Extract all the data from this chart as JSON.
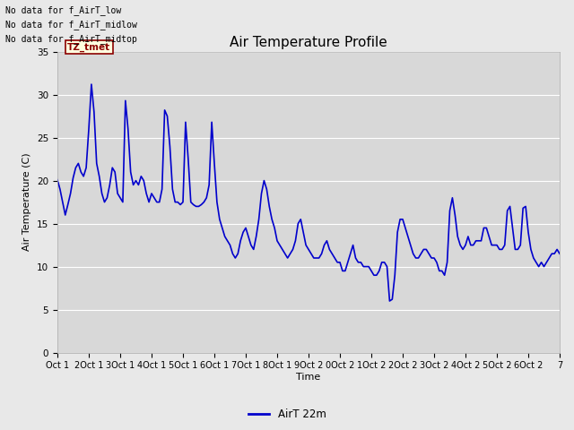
{
  "title": "Air Temperature Profile",
  "xlabel": "Time",
  "ylabel": "Air Temperature (C)",
  "ylim": [
    0,
    35
  ],
  "yticks": [
    0,
    5,
    10,
    15,
    20,
    25,
    30,
    35
  ],
  "line_color": "#0000CC",
  "line_width": 1.2,
  "fig_bg_color": "#E8E8E8",
  "plot_bg_color": "#D8D8D8",
  "annotations": [
    "No data for f_AirT_low",
    "No data for f_AirT_midlow",
    "No data for f_AirT_midtop"
  ],
  "legend_label": "AirT 22m",
  "tz_label": "TZ_tmet",
  "x_tick_labels": [
    "Oct 1",
    "2Oct 1",
    "3Oct 1",
    "4Oct 1",
    "5Oct 1",
    "6Oct 1",
    "7Oct 1",
    "8Oct 1",
    "9Oct 2",
    "0Oct 2",
    "1Oct 2",
    "2Oct 2",
    "3Oct 2",
    "4Oct 2",
    "5Oct 2",
    "6Oct 2",
    "7"
  ],
  "time_data": [
    0.0,
    0.083,
    0.167,
    0.25,
    0.333,
    0.417,
    0.5,
    0.583,
    0.667,
    0.75,
    0.833,
    0.917,
    1.0,
    1.083,
    1.167,
    1.25,
    1.333,
    1.417,
    1.5,
    1.583,
    1.667,
    1.75,
    1.833,
    1.917,
    2.0,
    2.083,
    2.167,
    2.25,
    2.333,
    2.417,
    2.5,
    2.583,
    2.667,
    2.75,
    2.833,
    2.917,
    3.0,
    3.083,
    3.167,
    3.25,
    3.333,
    3.417,
    3.5,
    3.583,
    3.667,
    3.75,
    3.833,
    3.917,
    4.0,
    4.083,
    4.167,
    4.25,
    4.333,
    4.417,
    4.5,
    4.583,
    4.667,
    4.75,
    4.833,
    4.917,
    5.0,
    5.083,
    5.167,
    5.25,
    5.333,
    5.417,
    5.5,
    5.583,
    5.667,
    5.75,
    5.833,
    5.917,
    6.0,
    6.083,
    6.167,
    6.25,
    6.333,
    6.417,
    6.5,
    6.583,
    6.667,
    6.75,
    6.833,
    6.917,
    7.0,
    7.083,
    7.167,
    7.25,
    7.333,
    7.417,
    7.5,
    7.583,
    7.667,
    7.75,
    7.833,
    7.917,
    8.0,
    8.083,
    8.167,
    8.25,
    8.333,
    8.417,
    8.5,
    8.583,
    8.667,
    8.75,
    8.833,
    8.917,
    9.0,
    9.083,
    9.167,
    9.25,
    9.333,
    9.417,
    9.5,
    9.583,
    9.667,
    9.75,
    9.833,
    9.917,
    10.0,
    10.083,
    10.167,
    10.25,
    10.333,
    10.417,
    10.5,
    10.583,
    10.667,
    10.75,
    10.833,
    10.917,
    11.0,
    11.083,
    11.167,
    11.25,
    11.333,
    11.417,
    11.5,
    11.583,
    11.667,
    11.75,
    11.833,
    11.917,
    12.0,
    12.083,
    12.167,
    12.25,
    12.333,
    12.417,
    12.5,
    12.583,
    12.667,
    12.75,
    12.833,
    12.917,
    13.0,
    13.083,
    13.167,
    13.25,
    13.333,
    13.417,
    13.5,
    13.583,
    13.667,
    13.75,
    13.833,
    13.917,
    14.0,
    14.083,
    14.167,
    14.25,
    14.333,
    14.417,
    14.5,
    14.583,
    14.667,
    14.75,
    14.833,
    14.917,
    15.0,
    15.083,
    15.167,
    15.25,
    15.333,
    15.417,
    15.5,
    15.583,
    15.667,
    15.75,
    15.833,
    15.917,
    16.0
  ],
  "temp_data": [
    20.1,
    19.0,
    17.5,
    16.0,
    17.2,
    18.5,
    20.3,
    21.5,
    22.0,
    21.0,
    20.5,
    21.5,
    26.0,
    31.2,
    28.0,
    22.0,
    20.5,
    18.5,
    17.5,
    18.0,
    19.5,
    21.5,
    21.0,
    18.5,
    18.0,
    17.5,
    29.3,
    26.0,
    21.0,
    19.5,
    20.0,
    19.5,
    20.5,
    20.0,
    18.5,
    17.5,
    18.5,
    18.0,
    17.5,
    17.5,
    19.0,
    28.2,
    27.5,
    24.0,
    19.0,
    17.5,
    17.5,
    17.2,
    17.5,
    26.8,
    22.5,
    17.5,
    17.2,
    17.0,
    17.0,
    17.2,
    17.5,
    18.0,
    19.5,
    26.8,
    22.0,
    17.5,
    15.5,
    14.5,
    13.5,
    13.0,
    12.5,
    11.5,
    11.0,
    11.5,
    13.0,
    14.0,
    14.5,
    13.5,
    12.5,
    12.0,
    13.5,
    15.5,
    18.5,
    20.0,
    19.0,
    17.0,
    15.5,
    14.5,
    13.0,
    12.5,
    12.0,
    11.5,
    11.0,
    11.5,
    12.0,
    13.0,
    15.0,
    15.5,
    14.0,
    12.5,
    12.0,
    11.5,
    11.0,
    11.0,
    11.0,
    11.5,
    12.5,
    13.0,
    12.0,
    11.5,
    11.0,
    10.5,
    10.5,
    9.5,
    9.5,
    10.5,
    11.5,
    12.5,
    11.0,
    10.5,
    10.5,
    10.0,
    10.0,
    10.0,
    9.5,
    9.0,
    9.0,
    9.5,
    10.5,
    10.5,
    10.0,
    6.0,
    6.2,
    9.0,
    14.0,
    15.5,
    15.5,
    14.5,
    13.5,
    12.5,
    11.5,
    11.0,
    11.0,
    11.5,
    12.0,
    12.0,
    11.5,
    11.0,
    11.0,
    10.5,
    9.5,
    9.5,
    9.0,
    10.5,
    16.5,
    18.0,
    16.0,
    13.5,
    12.5,
    12.0,
    12.5,
    13.5,
    12.5,
    12.5,
    13.0,
    13.0,
    13.0,
    14.5,
    14.5,
    13.5,
    12.5,
    12.5,
    12.5,
    12.0,
    12.0,
    12.5,
    16.5,
    17.0,
    14.5,
    12.0,
    12.0,
    12.5,
    16.8,
    17.0,
    14.0,
    12.0,
    11.0,
    10.5,
    10.0,
    10.5,
    10.0,
    10.5,
    11.0,
    11.5,
    11.5,
    12.0,
    11.5
  ]
}
